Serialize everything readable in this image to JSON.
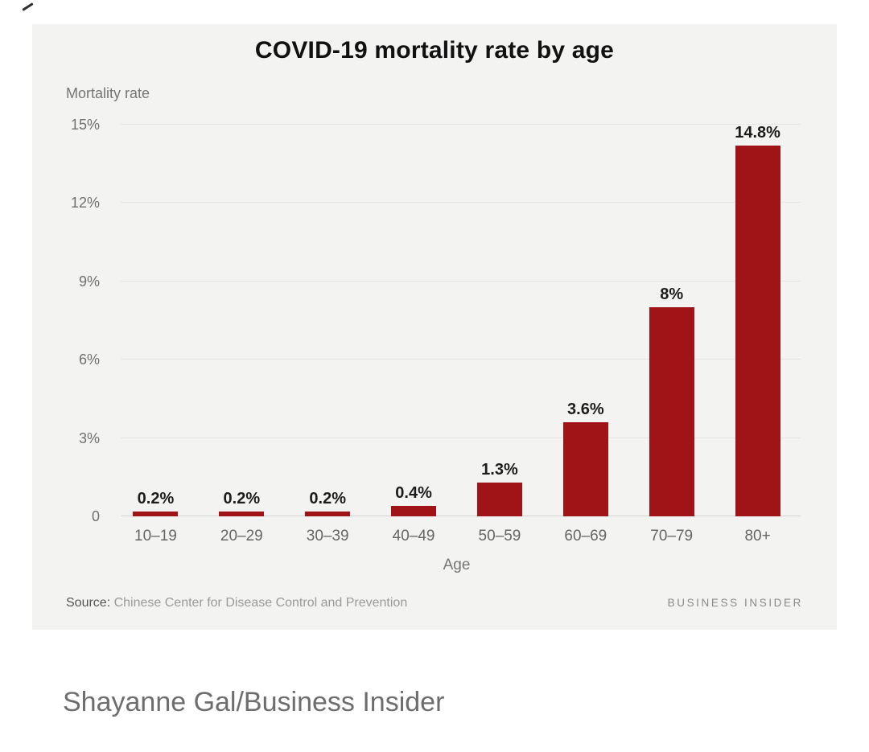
{
  "chart": {
    "title": "COVID-19 mortality rate by age",
    "y_axis_title": "Mortality rate",
    "x_axis_title": "Age",
    "source_prefix": "Source:",
    "source_text": " Chinese Center for Disease Control and Prevention",
    "brand": "BUSINESS INSIDER"
  },
  "chart_data": {
    "type": "bar",
    "title": "COVID-19 mortality rate by age",
    "categories": [
      "10–19",
      "20–29",
      "30–39",
      "40–49",
      "50–59",
      "60–69",
      "70–79",
      "80+"
    ],
    "values": [
      0.2,
      0.2,
      0.2,
      0.4,
      1.3,
      3.6,
      8,
      14.8
    ],
    "value_labels": [
      "0.2%",
      "0.2%",
      "0.2%",
      "0.4%",
      "1.3%",
      "3.6%",
      "8%",
      "14.8%"
    ],
    "xlabel": "Age",
    "ylabel": "Mortality rate",
    "ylim": [
      0,
      15
    ],
    "yticks": [
      0,
      3,
      6,
      9,
      12,
      15
    ],
    "ytick_labels": [
      "0",
      "3%",
      "6%",
      "9%",
      "12%",
      "15%"
    ],
    "grid": "horizontal",
    "legend": "none",
    "bar_color": "#a01317",
    "background": "#f3f3f2"
  },
  "caption": "Shayanne Gal/Business Insider"
}
